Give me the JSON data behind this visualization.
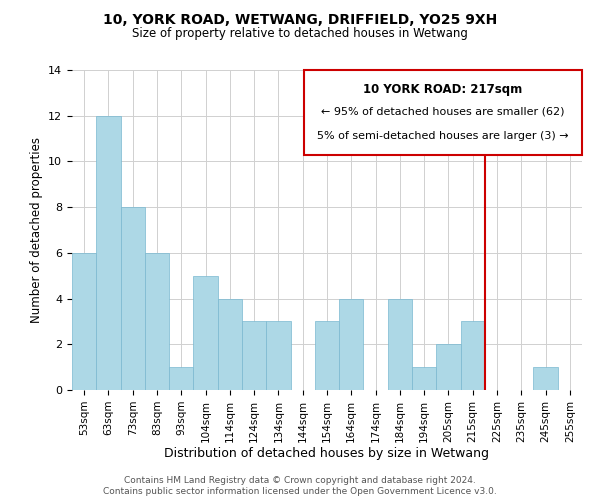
{
  "title": "10, YORK ROAD, WETWANG, DRIFFIELD, YO25 9XH",
  "subtitle": "Size of property relative to detached houses in Wetwang",
  "xlabel": "Distribution of detached houses by size in Wetwang",
  "ylabel": "Number of detached properties",
  "footer_line1": "Contains HM Land Registry data © Crown copyright and database right 2024.",
  "footer_line2": "Contains public sector information licensed under the Open Government Licence v3.0.",
  "bar_labels": [
    "53sqm",
    "63sqm",
    "73sqm",
    "83sqm",
    "93sqm",
    "104sqm",
    "114sqm",
    "124sqm",
    "134sqm",
    "144sqm",
    "154sqm",
    "164sqm",
    "174sqm",
    "184sqm",
    "194sqm",
    "205sqm",
    "215sqm",
    "225sqm",
    "235sqm",
    "245sqm",
    "255sqm"
  ],
  "bar_values": [
    6,
    12,
    8,
    6,
    1,
    5,
    4,
    3,
    3,
    0,
    3,
    4,
    0,
    4,
    1,
    2,
    3,
    0,
    0,
    1,
    0
  ],
  "bar_color": "#add8e6",
  "bar_edge_color": "#7ab8d0",
  "grid_color": "#d0d0d0",
  "ylim": [
    0,
    14
  ],
  "yticks": [
    0,
    2,
    4,
    6,
    8,
    10,
    12,
    14
  ],
  "annotation_line1": "10 YORK ROAD: 217sqm",
  "annotation_line2": "← 95% of detached houses are smaller (62)",
  "annotation_line3": "5% of semi-detached houses are larger (3) →",
  "marker_color": "#cc0000",
  "background_color": "#ffffff"
}
